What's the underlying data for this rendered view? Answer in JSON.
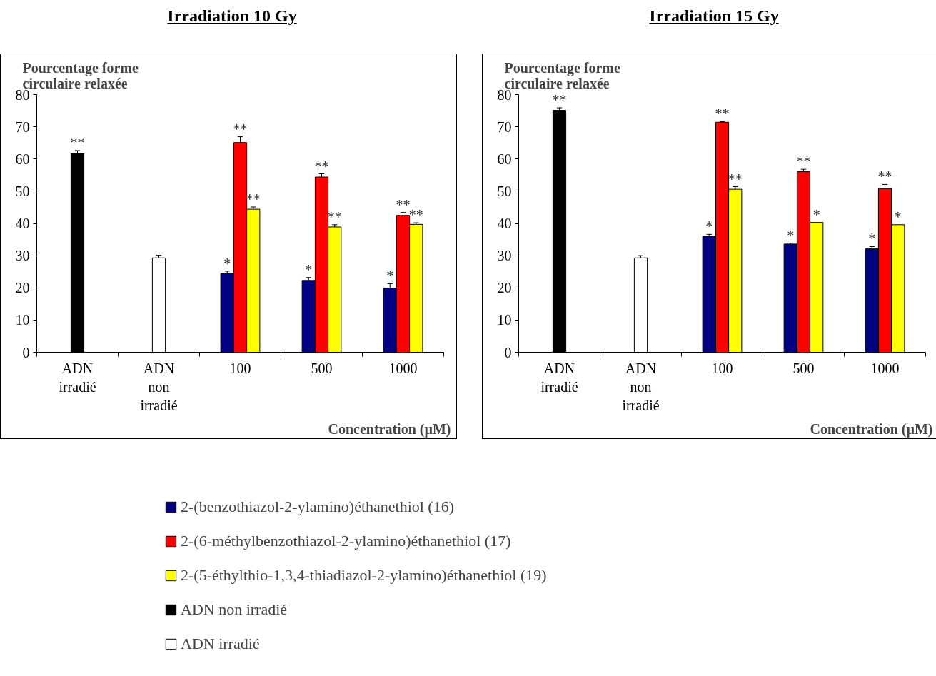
{
  "chart_data": [
    {
      "type": "bar",
      "title": "Irradiation 10 Gy",
      "ylabel": "Pourcentage forme circulaire relaxée",
      "xlabel": "Concentration (µM)",
      "categories": [
        "ADN irradié",
        "ADN non irradié",
        "100",
        "500",
        "1000"
      ],
      "ylim": [
        0,
        80
      ],
      "yticks": [
        0,
        10,
        20,
        30,
        40,
        50,
        60,
        70,
        80
      ],
      "grid": false,
      "legend": "bottom",
      "series": [
        {
          "name": "2-(benzothiazol-2-ylamino)éthanethiol (16)",
          "color": "#000080",
          "values": [
            null,
            null,
            24.4,
            22.3,
            19.9
          ],
          "errors": [
            null,
            null,
            [
              24.4,
              25.2
            ],
            [
              22.3,
              23.2
            ],
            [
              19.9,
              21.3
            ]
          ],
          "value_labels": [
            null,
            null,
            "*",
            "*",
            "*"
          ]
        },
        {
          "name": "2-(6-méthylbenzothiazol-2-ylamino)éthanethiol (17)",
          "color": "#ff0000",
          "values": [
            null,
            null,
            65.1,
            54.4,
            42.5
          ],
          "errors": [
            null,
            null,
            [
              65.1,
              66.9
            ],
            [
              54.4,
              55.4
            ],
            [
              42.5,
              43.4
            ]
          ],
          "value_labels": [
            null,
            null,
            "**",
            "**",
            "**"
          ]
        },
        {
          "name": "2-(5-éthylthio-1,3,4-thiadiazol-2-ylamino)éthanethiol (19)",
          "color": "#ffff00",
          "values": [
            null,
            null,
            44.4,
            38.9,
            39.7
          ],
          "errors": [
            null,
            null,
            [
              44.4,
              45.1
            ],
            [
              38.9,
              39.6
            ],
            [
              39.7,
              40.2
            ]
          ],
          "value_labels": [
            null,
            null,
            "**",
            "**",
            "**"
          ]
        },
        {
          "name": "ADN non irradié",
          "color": "#000000",
          "values": [
            61.6,
            null,
            null,
            null,
            null
          ],
          "errors": [
            [
              61.6,
              62.6
            ],
            null,
            null,
            null,
            null
          ],
          "value_labels": [
            "**",
            null,
            null,
            null,
            null
          ]
        },
        {
          "name": "ADN irradié",
          "color": "#ffffff",
          "values": [
            null,
            29.3,
            null,
            null,
            null
          ],
          "errors": [
            null,
            [
              29.3,
              30.1
            ],
            null,
            null,
            null
          ]
        }
      ]
    },
    {
      "type": "bar",
      "title": "Irradiation 15 Gy",
      "ylabel": "Pourcentage forme circulaire relaxée",
      "xlabel": "Concentration (µM)",
      "categories": [
        "ADN irradié",
        "ADN non irradié",
        "100",
        "500",
        "1000"
      ],
      "ylim": [
        0,
        80
      ],
      "yticks": [
        0,
        10,
        20,
        30,
        40,
        50,
        60,
        70,
        80
      ],
      "grid": false,
      "legend": false,
      "series": [
        {
          "color": "#000080",
          "values": [
            null,
            null,
            36.0,
            33.6,
            32.1
          ],
          "errors": [
            null,
            null,
            [
              36.0,
              36.6
            ],
            [
              33.6,
              33.9
            ],
            [
              32.1,
              32.8
            ]
          ],
          "value_labels": [
            null,
            null,
            "*",
            "*",
            "*"
          ]
        },
        {
          "color": "#ff0000",
          "values": [
            null,
            null,
            71.4,
            56.1,
            50.8
          ],
          "errors": [
            null,
            null,
            [
              71.4,
              71.6
            ],
            [
              56.1,
              56.8
            ],
            [
              50.8,
              52.1
            ]
          ],
          "value_labels": [
            null,
            null,
            "**",
            "**",
            "**"
          ]
        },
        {
          "color": "#ffff00",
          "values": [
            null,
            null,
            50.6,
            40.3,
            39.6
          ],
          "errors": [
            null,
            null,
            [
              50.6,
              51.4
            ],
            null,
            null
          ],
          "value_labels": [
            null,
            null,
            "**",
            "*",
            "*"
          ]
        },
        {
          "color": "#000000",
          "values": [
            75.1,
            null,
            null,
            null,
            null
          ],
          "errors": [
            [
              75.1,
              75.9
            ],
            null,
            null,
            null,
            null
          ],
          "value_labels": [
            "**",
            null,
            null,
            null,
            null
          ]
        },
        {
          "color": "#ffffff",
          "values": [
            null,
            29.3,
            null,
            null,
            null
          ],
          "errors": [
            null,
            [
              29.3,
              30.0
            ],
            null,
            null,
            null
          ]
        }
      ]
    }
  ]
}
